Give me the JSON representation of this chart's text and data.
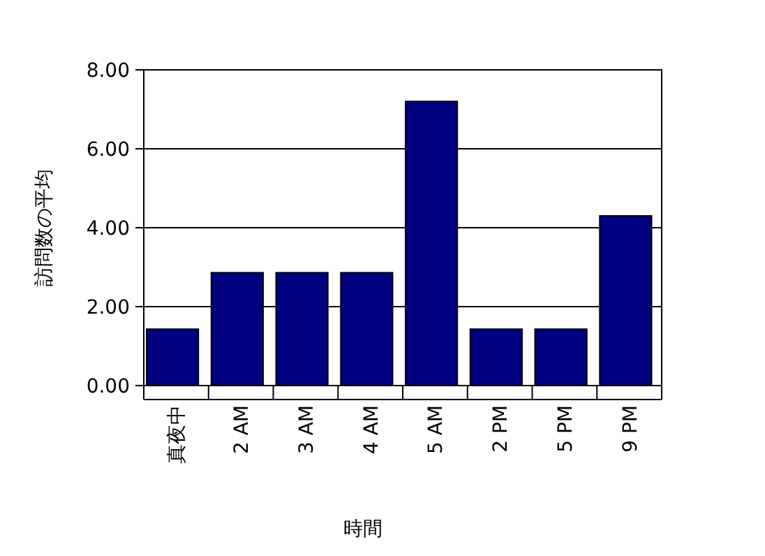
{
  "chart_data": {
    "type": "bar",
    "xlabel": "時間",
    "ylabel": "訪問数の平均",
    "categories": [
      "真夜中",
      "2 AM",
      "3 AM",
      "4 AM",
      "5 AM",
      "2 PM",
      "5 PM",
      "9 PM"
    ],
    "values": [
      1.43,
      2.86,
      2.86,
      2.86,
      7.2,
      1.43,
      1.43,
      4.3
    ],
    "color": "#000080",
    "ylim": [
      0,
      8
    ],
    "yticks": [
      {
        "value": 0,
        "label": "0.00"
      },
      {
        "value": 2,
        "label": "2.00"
      },
      {
        "value": 4,
        "label": "4.00"
      },
      {
        "value": 6,
        "label": "6.00"
      },
      {
        "value": 8,
        "label": "8.00"
      }
    ],
    "grid": "y"
  }
}
